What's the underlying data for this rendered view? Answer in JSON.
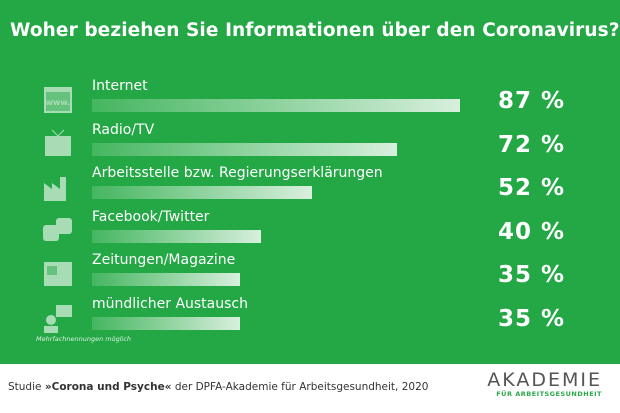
{
  "chart_data": {
    "type": "bar",
    "orientation": "horizontal",
    "title": "Woher beziehen Sie Informationen über den Coronavirus?",
    "categories": [
      "Internet",
      "Radio/TV",
      "Arbeitsstelle bzw. Regierungserklärungen",
      "Facebook/Twitter",
      "Zeitungen/Magazine",
      "mündlicher Austausch"
    ],
    "values": [
      87,
      72,
      52,
      40,
      35,
      35
    ],
    "value_labels": [
      "87 %",
      "72 %",
      "52 %",
      "40 %",
      "35 %",
      "35 %"
    ],
    "icons": [
      "www-browser-icon",
      "tv-icon",
      "factory-icon",
      "social-media-icon",
      "newspaper-icon",
      "conversation-icon"
    ],
    "xlim": [
      0,
      100
    ],
    "note": "Mehrfachnennungen möglich",
    "background_color": "#23a845"
  },
  "footer": {
    "source_prefix": "Studie ",
    "source_bold": "»Corona und Psyche«",
    "source_suffix": " der DPFA-Akademie für Arbeitsgesundheit, 2020",
    "logo_line1": "AKADEMIE",
    "logo_line2": "FÜR ARBEITSGESUNDHEIT"
  }
}
